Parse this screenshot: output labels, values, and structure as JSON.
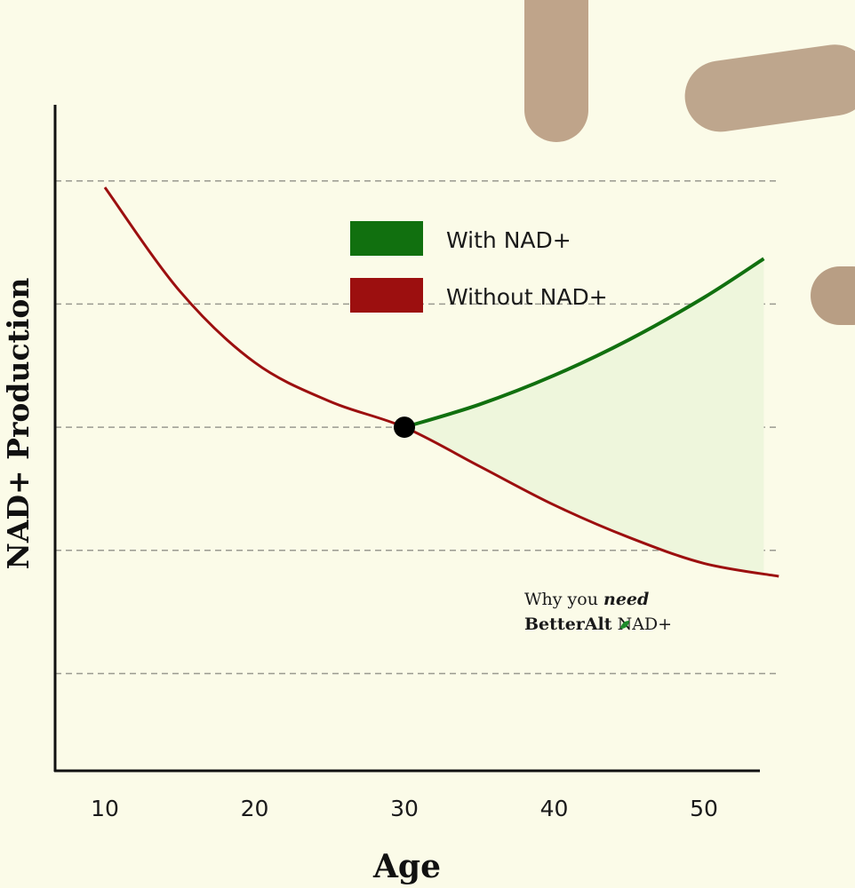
{
  "chart_data": {
    "type": "line",
    "title": "",
    "xlabel": "Age",
    "ylabel": "NAD+ Production",
    "x_ticks": [
      "10",
      "20",
      "30",
      "40",
      "50"
    ],
    "xlim": [
      7.4,
      54.5
    ],
    "ylim": [
      0,
      100
    ],
    "grid": true,
    "gridlines_y": [
      15,
      34,
      53,
      72,
      91
    ],
    "legend_position": "top-center",
    "series": [
      {
        "name": "With NAD+",
        "color": "#11700f",
        "x": [
          30,
          35,
          40,
          45,
          50,
          54
        ],
        "y": [
          53,
          56.5,
          61,
          66.5,
          73,
          79
        ]
      },
      {
        "name": "Without NAD+",
        "color": "#9c0f0f",
        "x": [
          10,
          15,
          20,
          25,
          30,
          35,
          40,
          45,
          50,
          55
        ],
        "y": [
          90,
          74,
          63,
          57,
          53,
          47,
          41,
          36,
          32,
          30
        ]
      }
    ],
    "intersection": {
      "x": 30,
      "y": 53
    },
    "annotation": {
      "line1_prefix": "Why you ",
      "line1_emphasis": "need",
      "line2_brand": "BetterAlt",
      "line2_suffix": " NAD+",
      "leaf_color": "#1e8c2b"
    }
  },
  "colors": {
    "background": "#fbfbe8",
    "fill_between": "#eef6dc",
    "grid": "#9a9a90",
    "axis": "#111111",
    "marker": "#000000"
  }
}
